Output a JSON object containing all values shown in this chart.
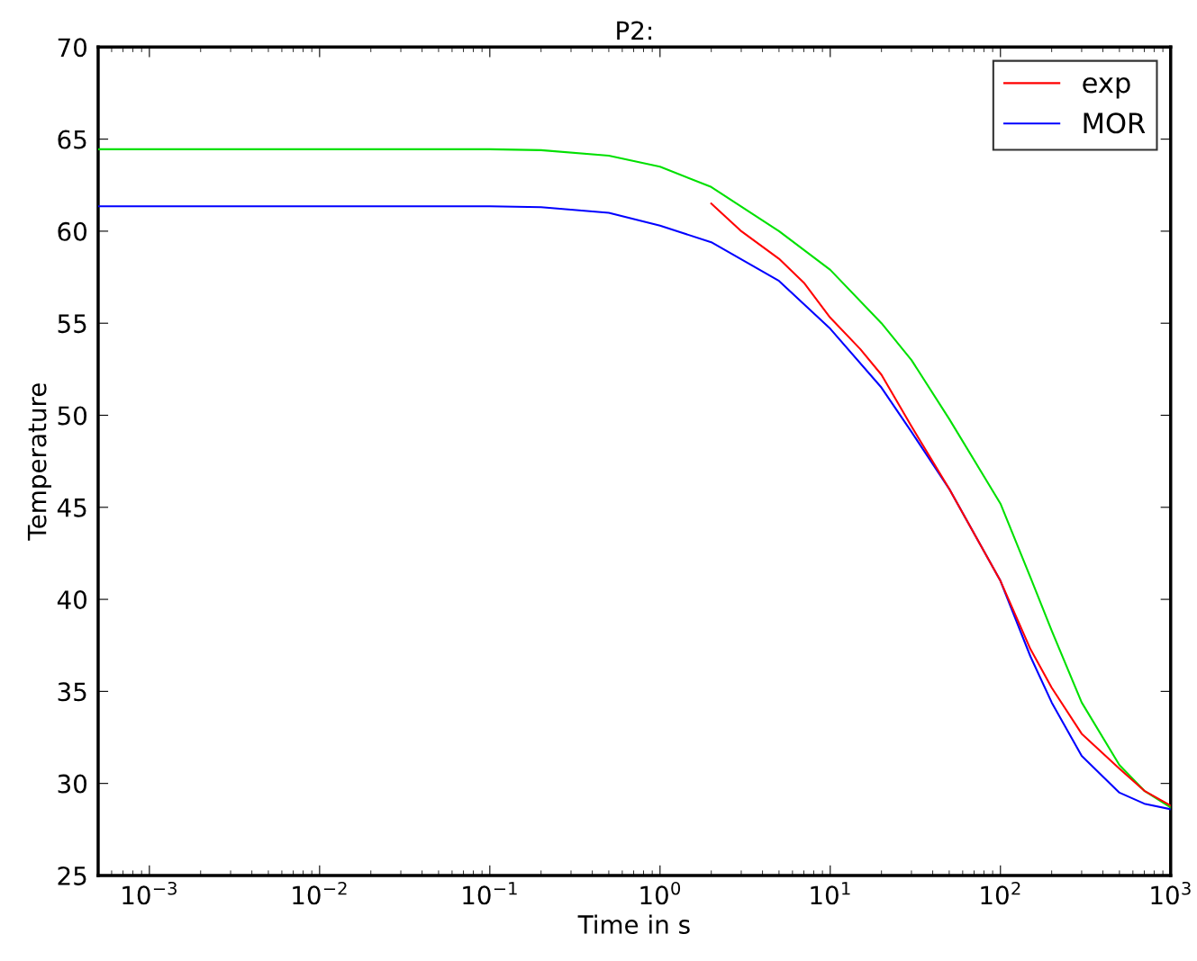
{
  "chart_data": {
    "type": "line",
    "title": "P2:",
    "xlabel": "Time in s",
    "ylabel": "Temperature",
    "log": "x",
    "xlim": [
      0.0005,
      1000
    ],
    "ylim": [
      25,
      70
    ],
    "xticks": [
      {
        "value": 0.001,
        "label": "10$^{−3}$"
      },
      {
        "value": 0.01,
        "label": "10$^{−2}$"
      },
      {
        "value": 0.1,
        "label": "10$^{−1}$"
      },
      {
        "value": 1,
        "label": "10$^{0}$"
      },
      {
        "value": 10,
        "label": "10$^{1}$"
      },
      {
        "value": 100,
        "label": "10$^{2}$"
      },
      {
        "value": 1000,
        "label": "10$^{3}$"
      }
    ],
    "yticks": [
      25,
      30,
      35,
      40,
      45,
      50,
      55,
      60,
      65,
      70
    ],
    "grid": false,
    "legend": "top right",
    "marker": "none",
    "line_style": "solid",
    "series": [
      {
        "name": "exp",
        "color": "#ff0000",
        "x": [
          2,
          3,
          5,
          7,
          10,
          15,
          20,
          30,
          50,
          100,
          150,
          200,
          300,
          500,
          700,
          1000
        ],
        "values": [
          61.5,
          60.0,
          58.5,
          57.2,
          55.3,
          53.6,
          52.2,
          49.4,
          46.0,
          41.0,
          37.3,
          35.2,
          32.7,
          30.8,
          29.6,
          28.8
        ]
      },
      {
        "color": "#00e000",
        "x": [
          0.0005,
          0.01,
          0.1,
          0.2,
          0.5,
          1,
          2,
          5,
          10,
          20,
          30,
          50,
          100,
          150,
          200,
          300,
          500,
          700,
          1000
        ],
        "values": [
          64.45,
          64.45,
          64.45,
          64.4,
          64.1,
          63.5,
          62.4,
          60.0,
          57.9,
          55.0,
          53.0,
          49.8,
          45.2,
          41.2,
          38.3,
          34.4,
          31.0,
          29.6,
          28.7
        ]
      },
      {
        "name": "MOR",
        "color": "#0000ff",
        "x": [
          0.0005,
          0.01,
          0.1,
          0.2,
          0.5,
          1,
          2,
          5,
          10,
          20,
          30,
          50,
          100,
          150,
          200,
          300,
          500,
          700,
          1000
        ],
        "values": [
          61.35,
          61.35,
          61.35,
          61.3,
          61.0,
          60.3,
          59.4,
          57.3,
          54.7,
          51.5,
          49.1,
          46.0,
          41.0,
          36.9,
          34.4,
          31.5,
          29.5,
          28.9,
          28.6
        ]
      }
    ]
  }
}
